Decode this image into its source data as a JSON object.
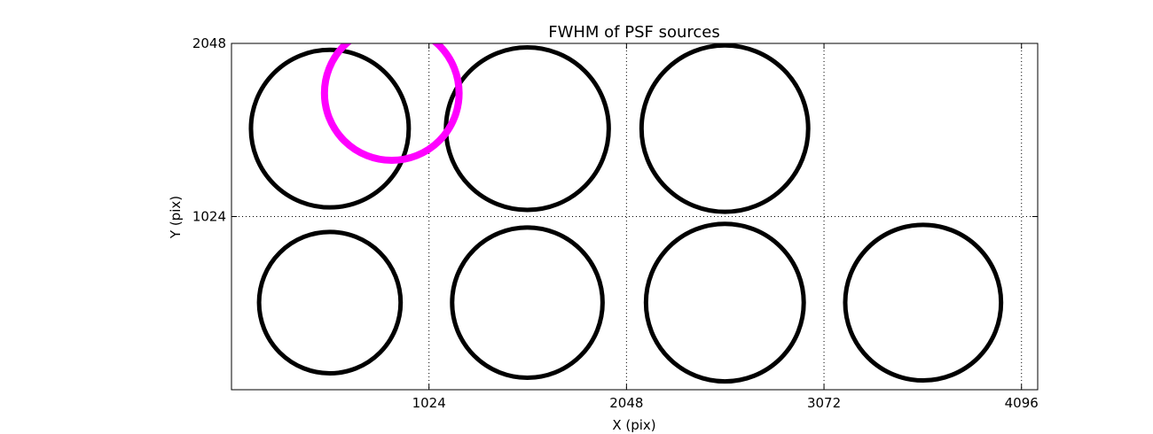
{
  "chart_data": {
    "type": "scatter",
    "title": "FWHM of PSF sources",
    "x_label": "X (pix)",
    "y_label": "Y (pix)",
    "xlim": [
      0,
      4180
    ],
    "ylim": [
      0,
      2048
    ],
    "xticks": [
      1024,
      2048,
      3072,
      4096
    ],
    "yticks": [
      1024,
      2048
    ],
    "grid": true,
    "series": [
      {
        "color": "#000000",
        "x": [
          510,
          1534,
          2558,
          510,
          1534,
          2558,
          3586
        ],
        "values": [
          1544,
          1544,
          1544,
          515,
          515,
          515,
          515
        ],
        "sizes": [
          409,
          422,
          432,
          367,
          390,
          409,
          404
        ]
      },
      {
        "color": "#ff00ff",
        "x": [
          831
        ],
        "values": [
          1754
        ],
        "sizes": [
          349
        ]
      }
    ]
  }
}
